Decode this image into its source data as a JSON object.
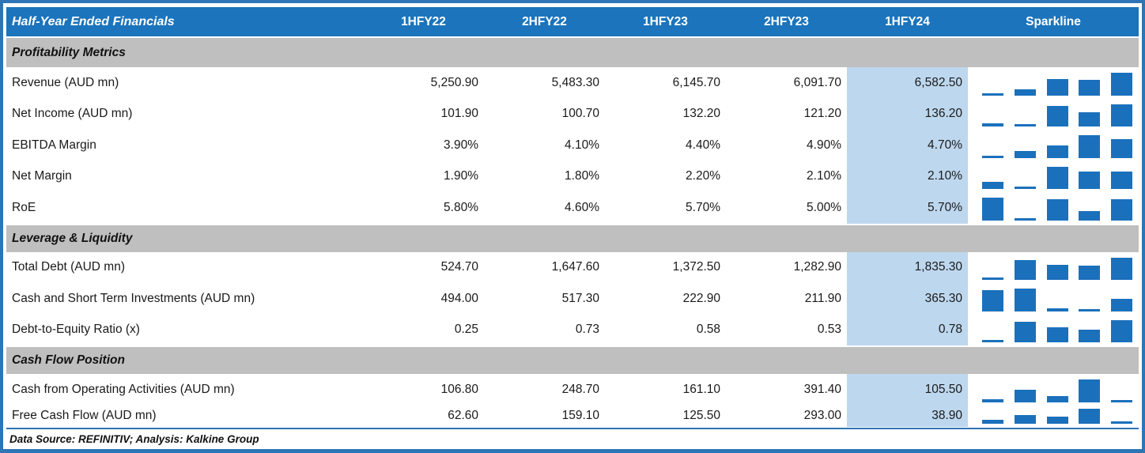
{
  "colors": {
    "header_blue": "#1b74bc",
    "bar_blue": "#1b70bc",
    "light_blue": "#bdd7ee",
    "section_gray": "#bfbfbf",
    "border_blue": "#2e75b6",
    "text_dark": "#1a1a1a"
  },
  "header": {
    "sparkline_label": "Sparkline"
  },
  "footer": {
    "text": "Data Source: REFINITIV; Analysis: Kalkine Group"
  },
  "chart_data": {
    "type": "table",
    "title": "Half-Year Ended Financials",
    "column_headers": [
      "1HFY22",
      "2HFY22",
      "1HFY23",
      "2HFY23",
      "1HFY24"
    ],
    "highlighted_column": "1HFY24",
    "sparkline_type": "bar",
    "sparkline_scaling": "per-row min to max, minimum value drawn as thin sliver",
    "sections": [
      {
        "label": "Profitability Metrics",
        "rows": [
          {
            "label": "Revenue (AUD mn)",
            "display": [
              "5,250.90",
              "5,483.30",
              "6,145.70",
              "6,091.70",
              "6,582.50"
            ],
            "values": [
              5250.9,
              5483.3,
              6145.7,
              6091.7,
              6582.5
            ]
          },
          {
            "label": "Net Income (AUD mn)",
            "display": [
              "101.90",
              "100.70",
              "132.20",
              "121.20",
              "136.20"
            ],
            "values": [
              101.9,
              100.7,
              132.2,
              121.2,
              136.2
            ]
          },
          {
            "label": "EBITDA Margin",
            "display": [
              "3.90%",
              "4.10%",
              "4.40%",
              "4.90%",
              "4.70%"
            ],
            "values": [
              3.9,
              4.1,
              4.4,
              4.9,
              4.7
            ]
          },
          {
            "label": "Net Margin",
            "display": [
              "1.90%",
              "1.80%",
              "2.20%",
              "2.10%",
              "2.10%"
            ],
            "values": [
              1.9,
              1.8,
              2.2,
              2.1,
              2.1
            ]
          },
          {
            "label": "RoE",
            "display": [
              "5.80%",
              "4.60%",
              "5.70%",
              "5.00%",
              "5.70%"
            ],
            "values": [
              5.8,
              4.6,
              5.7,
              5.0,
              5.7
            ]
          }
        ]
      },
      {
        "label": "Leverage & Liquidity",
        "rows": [
          {
            "label": "Total Debt (AUD mn)",
            "display": [
              "524.70",
              "1,647.60",
              "1,372.50",
              "1,282.90",
              "1,835.30"
            ],
            "values": [
              524.7,
              1647.6,
              1372.5,
              1282.9,
              1835.3
            ]
          },
          {
            "label": "Cash and Short Term Investments (AUD mn)",
            "display": [
              "494.00",
              "517.30",
              "222.90",
              "211.90",
              "365.30"
            ],
            "values": [
              494.0,
              517.3,
              222.9,
              211.9,
              365.3
            ]
          },
          {
            "label": "Debt-to-Equity Ratio (x)",
            "display": [
              "0.25",
              "0.73",
              "0.58",
              "0.53",
              "0.78"
            ],
            "values": [
              0.25,
              0.73,
              0.58,
              0.53,
              0.78
            ]
          }
        ]
      },
      {
        "label": "Cash Flow Position",
        "rows": [
          {
            "label": "Cash from Operating Activities (AUD mn)",
            "display": [
              "106.80",
              "248.70",
              "161.10",
              "391.40",
              "105.50"
            ],
            "values": [
              106.8,
              248.7,
              161.1,
              391.4,
              105.5
            ]
          },
          {
            "label": "Free Cash Flow (AUD mn)",
            "display": [
              "62.60",
              "159.10",
              "125.50",
              "293.00",
              "38.90"
            ],
            "values": [
              62.6,
              159.1,
              125.5,
              293.0,
              38.9
            ]
          }
        ]
      }
    ]
  }
}
